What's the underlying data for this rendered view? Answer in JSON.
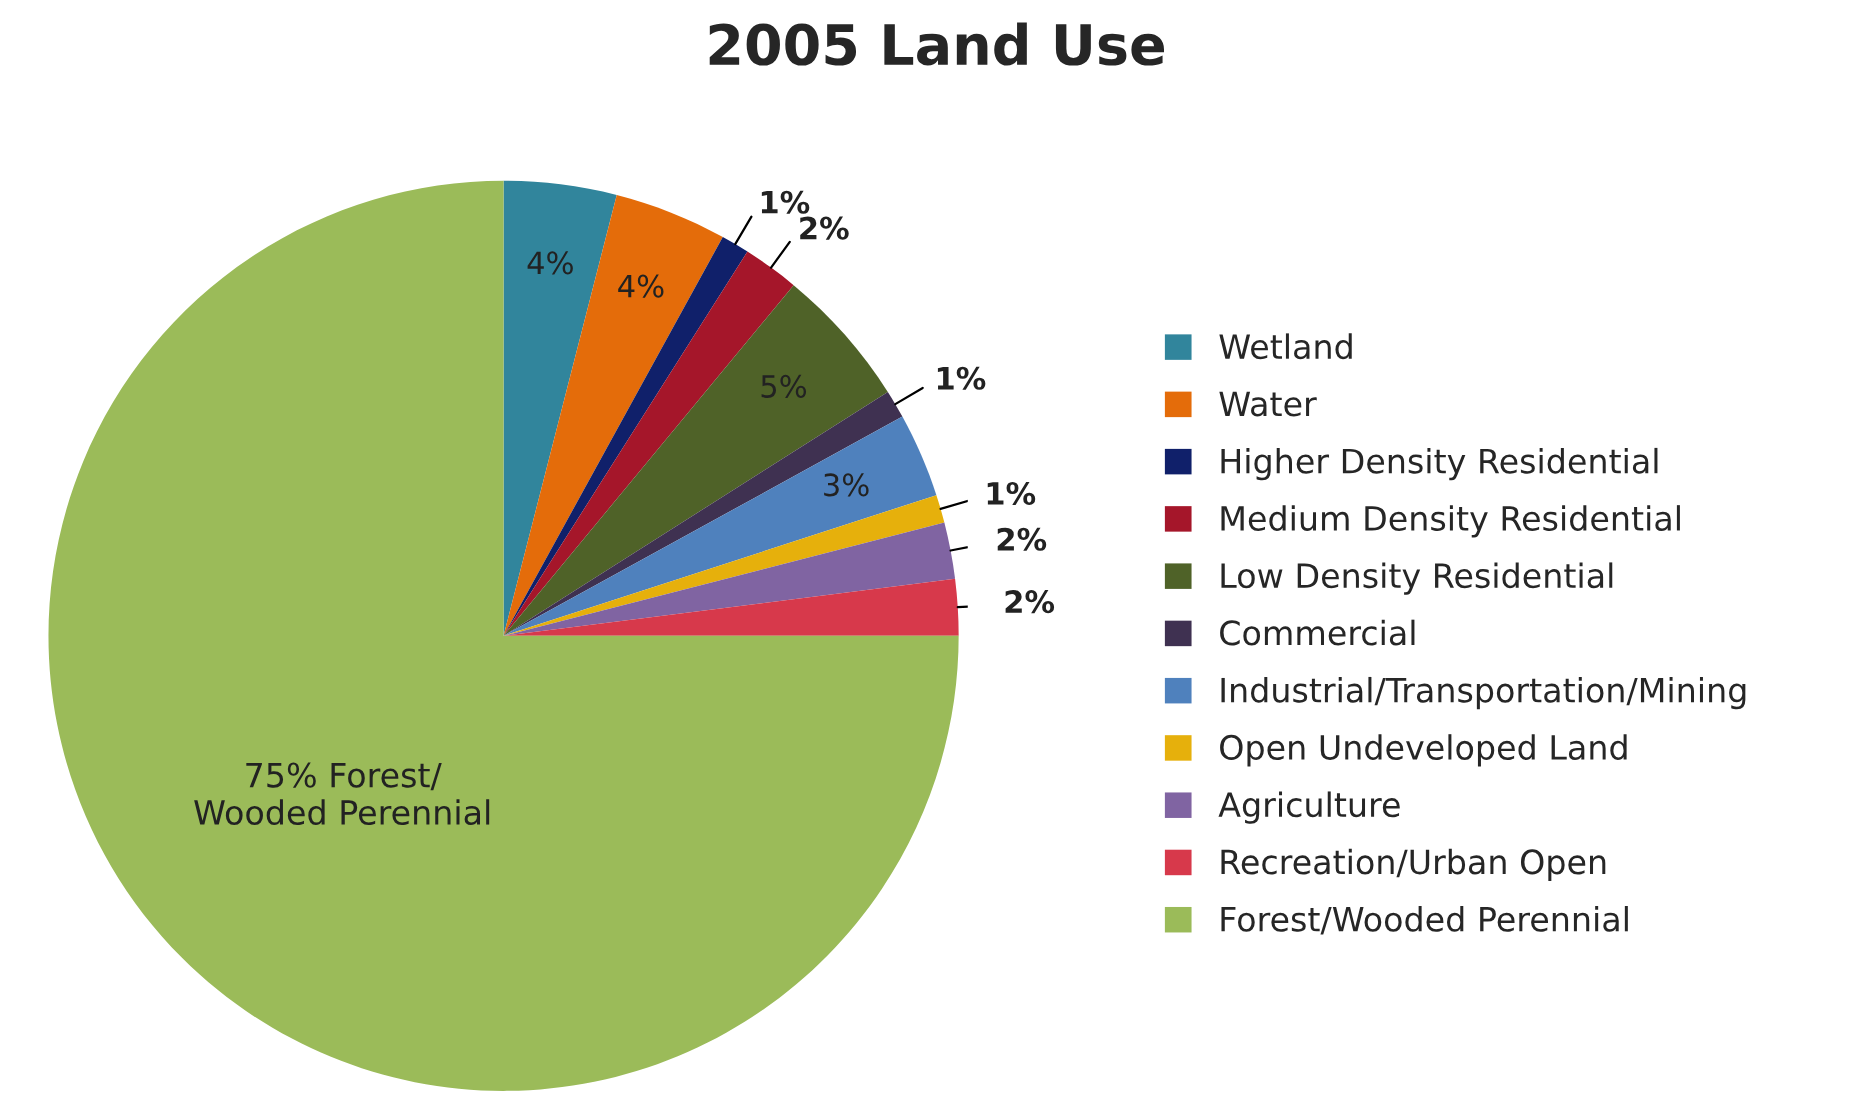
{
  "chart_data": {
    "type": "pie",
    "title": "2005 Land Use",
    "categories": [
      "Wetland",
      "Water",
      "Higher Density Residential",
      "Medium Density Residential",
      "Low Density Residential",
      "Commercial",
      "Industrial/Transportation/Mining",
      "Open Undeveloped Land",
      "Agriculture",
      "Recreation/Urban Open",
      "Forest/Wooded Perennial"
    ],
    "values": [
      4,
      4,
      1,
      2,
      5,
      1,
      3,
      1,
      2,
      2,
      75
    ],
    "colors": [
      "#31859c",
      "#e46c0a",
      "#10206a",
      "#a5162a",
      "#4f6228",
      "#3f3151",
      "#4f81bd",
      "#e6b00c",
      "#8064a2",
      "#d7394b",
      "#9bbb59"
    ],
    "value_labels": [
      "4%",
      "4%",
      "1%",
      "2%",
      "5%",
      "1%",
      "3%",
      "1%",
      "2%",
      "2%",
      "75% Forest/\nWooded Perennial"
    ],
    "legend": "right"
  }
}
